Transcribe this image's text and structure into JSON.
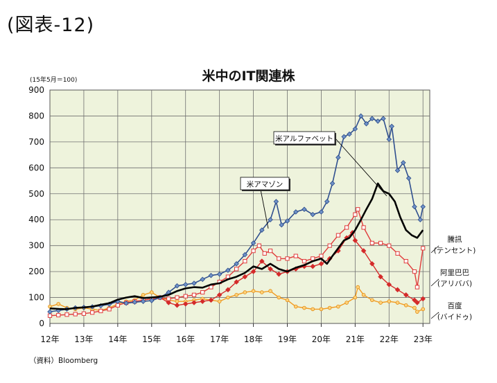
{
  "figure_label": "(図表-12)",
  "source": "（資料）Bloomberg",
  "chart_data": {
    "type": "line",
    "title": "米中のIT関連株",
    "base_note": "(15年5月＝100)",
    "ylim": [
      0,
      900
    ],
    "yticks": [
      0,
      100,
      200,
      300,
      400,
      500,
      600,
      700,
      800,
      900
    ],
    "xlim": [
      2012,
      2023.2
    ],
    "xticks": [
      {
        "v": 2012,
        "label": "12年"
      },
      {
        "v": 2013,
        "label": "13年"
      },
      {
        "v": 2014,
        "label": "14年"
      },
      {
        "v": 2015,
        "label": "15年"
      },
      {
        "v": 2016,
        "label": "16年"
      },
      {
        "v": 2017,
        "label": "17年"
      },
      {
        "v": 2018,
        "label": "18年"
      },
      {
        "v": 2019,
        "label": "19年"
      },
      {
        "v": 2020,
        "label": "20年"
      },
      {
        "v": 2021,
        "label": "21年"
      },
      {
        "v": 2022,
        "label": "22年"
      },
      {
        "v": 2023,
        "label": "23年"
      }
    ],
    "grid": true,
    "colors": {
      "plot_bg": "#eef3dc",
      "grid": "#6f6f6f",
      "amazon": "#2f4f8f",
      "alphabet": "#000000",
      "tencent": "#e03a3a",
      "alibaba": "#d42a2a",
      "baidu": "#f39a1e"
    },
    "series": [
      {
        "key": "amazon",
        "name": "米アマゾン",
        "x": [
          2012.0,
          2012.25,
          2012.5,
          2012.75,
          2013.0,
          2013.25,
          2013.5,
          2013.75,
          2014.0,
          2014.25,
          2014.5,
          2014.75,
          2015.0,
          2015.25,
          2015.5,
          2015.75,
          2016.0,
          2016.25,
          2016.5,
          2016.75,
          2017.0,
          2017.25,
          2017.5,
          2017.75,
          2018.0,
          2018.25,
          2018.5,
          2018.67,
          2018.83,
          2019.0,
          2019.25,
          2019.5,
          2019.75,
          2020.0,
          2020.17,
          2020.33,
          2020.5,
          2020.67,
          2020.83,
          2021.0,
          2021.17,
          2021.33,
          2021.5,
          2021.67,
          2021.83,
          2022.0,
          2022.08,
          2022.25,
          2022.42,
          2022.58,
          2022.75,
          2022.92,
          2023.0
        ],
        "y": [
          45,
          50,
          55,
          60,
          62,
          64,
          68,
          74,
          85,
          78,
          82,
          85,
          88,
          100,
          120,
          145,
          150,
          155,
          170,
          185,
          190,
          205,
          230,
          265,
          310,
          360,
          400,
          470,
          380,
          395,
          430,
          440,
          420,
          430,
          470,
          540,
          640,
          720,
          730,
          750,
          800,
          770,
          790,
          780,
          790,
          710,
          760,
          590,
          620,
          560,
          450,
          400,
          450
        ]
      },
      {
        "key": "alphabet",
        "name": "米アルファベット",
        "x": [
          2012.0,
          2012.25,
          2012.5,
          2012.75,
          2013.0,
          2013.25,
          2013.5,
          2013.75,
          2014.0,
          2014.25,
          2014.5,
          2014.75,
          2015.0,
          2015.25,
          2015.5,
          2015.75,
          2016.0,
          2016.25,
          2016.5,
          2016.75,
          2017.0,
          2017.25,
          2017.5,
          2017.75,
          2018.0,
          2018.25,
          2018.5,
          2018.75,
          2019.0,
          2019.25,
          2019.5,
          2019.75,
          2020.0,
          2020.17,
          2020.33,
          2020.5,
          2020.67,
          2020.83,
          2021.0,
          2021.17,
          2021.33,
          2021.5,
          2021.67,
          2021.83,
          2022.0,
          2022.17,
          2022.33,
          2022.5,
          2022.67,
          2022.83,
          2023.0
        ],
        "y": [
          58,
          56,
          55,
          60,
          62,
          65,
          72,
          78,
          92,
          100,
          105,
          98,
          100,
          103,
          110,
          125,
          135,
          140,
          138,
          150,
          155,
          170,
          180,
          195,
          220,
          210,
          230,
          210,
          200,
          215,
          225,
          240,
          250,
          230,
          260,
          290,
          320,
          330,
          360,
          400,
          440,
          480,
          540,
          510,
          500,
          470,
          410,
          360,
          340,
          330,
          360
        ]
      },
      {
        "key": "tencent",
        "name": "騰訊 (テンセント)",
        "x": [
          2012.0,
          2012.25,
          2012.5,
          2012.75,
          2013.0,
          2013.25,
          2013.5,
          2013.75,
          2014.0,
          2014.25,
          2014.5,
          2014.75,
          2015.0,
          2015.25,
          2015.5,
          2015.75,
          2016.0,
          2016.25,
          2016.5,
          2016.75,
          2017.0,
          2017.25,
          2017.5,
          2017.75,
          2018.0,
          2018.17,
          2018.33,
          2018.5,
          2018.75,
          2019.0,
          2019.25,
          2019.5,
          2019.75,
          2020.0,
          2020.25,
          2020.5,
          2020.75,
          2021.0,
          2021.08,
          2021.25,
          2021.5,
          2021.75,
          2022.0,
          2022.25,
          2022.5,
          2022.75,
          2022.83,
          2023.0
        ],
        "y": [
          30,
          32,
          34,
          36,
          38,
          42,
          48,
          55,
          70,
          80,
          85,
          90,
          95,
          100,
          95,
          100,
          105,
          110,
          120,
          140,
          160,
          180,
          210,
          240,
          280,
          300,
          270,
          280,
          250,
          250,
          260,
          240,
          250,
          260,
          300,
          340,
          370,
          420,
          440,
          370,
          310,
          310,
          300,
          270,
          240,
          200,
          140,
          290
        ]
      },
      {
        "key": "alibaba",
        "name": "阿里巴巴 (アリババ)",
        "x": [
          2015.25,
          2015.5,
          2015.75,
          2016.0,
          2016.25,
          2016.5,
          2016.75,
          2017.0,
          2017.25,
          2017.5,
          2017.75,
          2018.0,
          2018.25,
          2018.5,
          2018.75,
          2019.0,
          2019.25,
          2019.5,
          2019.75,
          2020.0,
          2020.25,
          2020.5,
          2020.75,
          2020.92,
          2021.0,
          2021.25,
          2021.5,
          2021.75,
          2022.0,
          2022.25,
          2022.5,
          2022.75,
          2022.83,
          2023.0
        ],
        "y": [
          100,
          80,
          70,
          75,
          80,
          85,
          90,
          110,
          130,
          160,
          180,
          200,
          240,
          210,
          190,
          200,
          210,
          220,
          220,
          230,
          250,
          280,
          330,
          350,
          320,
          280,
          230,
          180,
          150,
          130,
          110,
          90,
          80,
          95
        ]
      },
      {
        "key": "baidu",
        "name": "百度 (バイドゥ)",
        "x": [
          2012.0,
          2012.25,
          2012.5,
          2012.75,
          2013.0,
          2013.25,
          2013.5,
          2013.75,
          2014.0,
          2014.25,
          2014.5,
          2014.75,
          2015.0,
          2015.25,
          2015.5,
          2015.75,
          2016.0,
          2016.25,
          2016.5,
          2016.75,
          2017.0,
          2017.25,
          2017.5,
          2017.75,
          2018.0,
          2018.25,
          2018.5,
          2018.75,
          2019.0,
          2019.25,
          2019.5,
          2019.75,
          2020.0,
          2020.25,
          2020.5,
          2020.75,
          2021.0,
          2021.08,
          2021.25,
          2021.5,
          2021.75,
          2022.0,
          2022.25,
          2022.5,
          2022.75,
          2022.83,
          2023.0
        ],
        "y": [
          65,
          75,
          60,
          55,
          60,
          55,
          50,
          60,
          75,
          85,
          90,
          110,
          120,
          100,
          90,
          85,
          85,
          90,
          95,
          90,
          85,
          100,
          110,
          120,
          125,
          120,
          125,
          100,
          90,
          65,
          60,
          55,
          55,
          60,
          65,
          80,
          100,
          140,
          110,
          90,
          80,
          85,
          80,
          70,
          60,
          45,
          55
        ]
      }
    ],
    "labels": [
      {
        "key": "amazon",
        "text": "米アマゾン",
        "boxed": true
      },
      {
        "key": "alphabet",
        "text": "米アルファベット",
        "boxed": true
      },
      {
        "key": "tencent",
        "text": [
          "騰訊",
          "(テンセント)"
        ]
      },
      {
        "key": "alibaba",
        "text": [
          "阿里巴巴",
          "(アリババ)"
        ]
      },
      {
        "key": "baidu",
        "text": [
          "百度",
          "(バイドゥ)"
        ]
      }
    ]
  }
}
